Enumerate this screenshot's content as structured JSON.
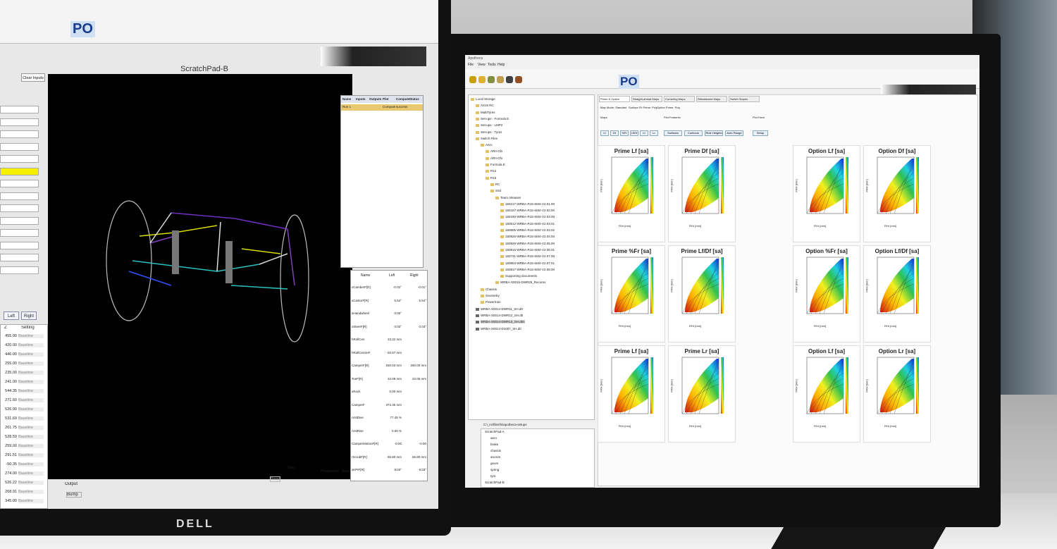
{
  "left_window": {
    "toolbar_label": "PO",
    "title": "ScratchPad-B",
    "clear_button": "Clear Inputs",
    "side_buttons": [
      "Left",
      "Right"
    ],
    "settings_table": {
      "headers": [
        "Z",
        "Setting"
      ],
      "rows": [
        [
          "455.00",
          "Baseline"
        ],
        [
          "420.00",
          "Baseline"
        ],
        [
          "446.00",
          "Baseline"
        ],
        [
          "255.00",
          "Baseline"
        ],
        [
          "235.00",
          "Baseline"
        ],
        [
          "241.00",
          "Baseline"
        ],
        [
          "544.35",
          "Baseline"
        ],
        [
          "271.60",
          "Baseline"
        ],
        [
          "526.00",
          "Baseline"
        ],
        [
          "531.69",
          "Baseline"
        ],
        [
          "261.75",
          "Baseline"
        ],
        [
          "528.59",
          "Baseline"
        ],
        [
          "259.00",
          "Baseline"
        ],
        [
          "291.51",
          "Baseline"
        ],
        [
          "-50.35",
          "Baseline"
        ],
        [
          "274.00",
          "Baseline"
        ],
        [
          "526.22",
          "Baseline"
        ],
        [
          "268.91",
          "Baseline"
        ],
        [
          "345.00",
          "Baseline"
        ]
      ]
    },
    "runs_table": {
      "headers": [
        "Name",
        "Inputs",
        "Outputs",
        "Plot",
        "Compute",
        "Status"
      ],
      "run": {
        "name": "Run 1",
        "compute": "Compute",
        "status": "success"
      }
    },
    "params_table": {
      "headers": [
        "Name",
        "Left",
        "Right"
      ],
      "rows": [
        [
          "xCamberF[R]",
          "-0.02°",
          "-0.01°"
        ],
        [
          "xCastorF[R]",
          "5.54°",
          "5.54°"
        ],
        [
          "aHandwheel",
          "0.00°"
        ],
        [
          "xSteerF[R]",
          "0.03°",
          "0.03°"
        ],
        [
          "hRollCen",
          "23.22 mm"
        ],
        [
          "hRollCentreF",
          "-20.87 mm"
        ],
        [
          "CamperF[R]",
          "250.03 mm",
          "250.00 mm"
        ],
        [
          "ToeF[R]",
          "22.09 mm",
          "22.05 mm"
        ],
        [
          "xRock",
          "0.00 mm"
        ],
        [
          "CamperF",
          "373.45 mm"
        ],
        [
          "AntiDive",
          "77.45 %"
        ],
        [
          "AntiRise",
          "0.00 %"
        ],
        [
          "CamperMotionF[R]",
          "-0.00",
          "-0.00"
        ],
        [
          "rScrubF[R]",
          "55.80 mm",
          "55.80 mm"
        ],
        [
          "xKPIF[R]",
          "8.03°",
          "8.03°"
        ]
      ]
    },
    "bottom_controls": {
      "output": "Output",
      "bump": "Bump",
      "reset": "Reset",
      "view": "View",
      "perspective": "Perspective",
      "axes": "Axes"
    }
  },
  "right_window": {
    "title": "Apotheca",
    "toolbar_label": "PO",
    "menu": [
      "File",
      "View",
      "Tools",
      "Help"
    ],
    "tree": [
      "Local Storage",
      "AX15 RC",
      "MultiTyres",
      "Set-ups - Formula E",
      "Set-ups - LMP2",
      "Set-ups - Tyres",
      "Switch Files",
      "Aero",
      "ARII-Gfx",
      "ARII-Gfx",
      "Formula E",
      "R12",
      "R15",
      "RC",
      "SS4",
      "Team releases",
      "150217-WRBA-R15-SM4-V2.01.00",
      "150427-WRBA-R15-SM4-V2.02.00",
      "150430-WRBA-R15-SM4-V2.03.00",
      "150512-WRBA-R15-SM4-V2.03.01",
      "150805-WRBA-R15-SM4-V2.03.02",
      "150926-WRBA-R15-SM4-V2.04.00",
      "150928-WRBA-R15-SM4-V2.05.00",
      "150815-WRBA-R15-SM4-V2.06.01",
      "150731-WRBA-R15-SM4-V2.07.00",
      "150804-WRBA-R15-SM4-V2.07.01",
      "150817-WRBA-R15-SM4-V2.08.00",
      "Supporting documents",
      "WRBA-S0015-DWR25_Recorex",
      "Chassis",
      "Geometry",
      "Powertrain",
      "WRBA-S0014-DWR11_SH.d0",
      "WRBA-S0014-DWR12_SH.d0",
      "WRBA-S0014-DWR13_SH.d01",
      "WRBA-S0014-D1007_SH.d0"
    ],
    "path": "C:\\_nc\\files\\fs\\apotheca-setups",
    "setups": [
      "ScratchPad-A",
      "aero",
      "brake",
      "chassis",
      "ancsim",
      "geom",
      "spring",
      "tyre",
      "ScratchPad-B"
    ],
    "tabs": [
      "Prime & Option",
      "Straight-ahead Maps",
      "Cornering Maps",
      "Rebalanced Maps",
      "Switch Slopes"
    ],
    "options": [
      "Map Mode: Standard",
      "Surface Fit Prime: Poly",
      "Option Prime: Poly"
    ],
    "groups": [
      "Maps",
      "Plot Features",
      "Plot Hove"
    ],
    "map_buttons": [
      "Lf",
      "Df",
      "%Fr",
      "Lf/Df",
      "Lf",
      "Lr"
    ],
    "feature_buttons": [
      "Surfaces",
      "Contours",
      "Ride Heights",
      "Auto Range"
    ],
    "setup_button": "Setup",
    "charts": [
      "Prime Lf [sa]",
      "Prime Df [sa]",
      "Prime %Fr [sa]",
      "Prime Lf/Df [sa]",
      "Prime Lf [sa]",
      "Prime Lr [sa]",
      "Option Lf [sa]",
      "Option Df [sa]",
      "Option %Fr [sa]",
      "Option Lf/Df [sa]",
      "Option Lf [sa]",
      "Option Lr [sa]"
    ],
    "x_label": "RHr [mm]",
    "y_label": "FRH [mm]"
  },
  "brand": "DELL"
}
